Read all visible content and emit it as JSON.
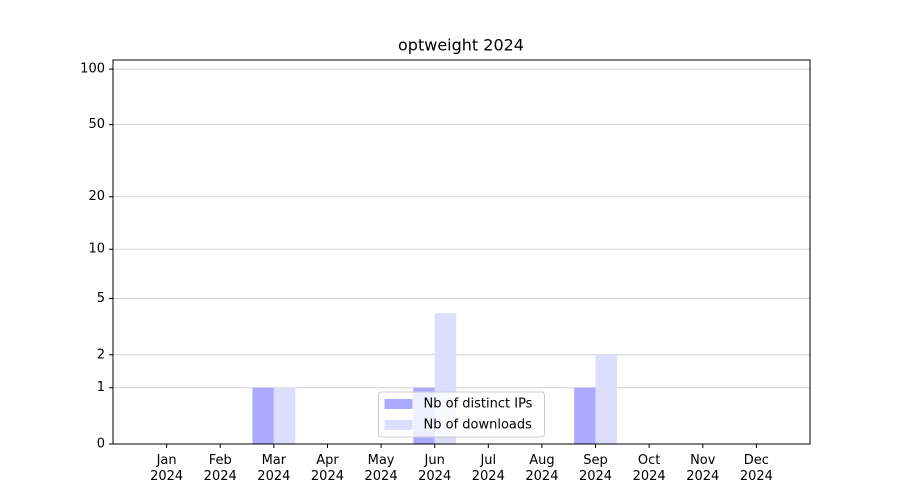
{
  "chart_data": {
    "type": "bar",
    "title": "optweight 2024",
    "categories": [
      "Jan\n2024",
      "Feb\n2024",
      "Mar\n2024",
      "Apr\n2024",
      "May\n2024",
      "Jun\n2024",
      "Jul\n2024",
      "Aug\n2024",
      "Sep\n2024",
      "Oct\n2024",
      "Nov\n2024",
      "Dec\n2024"
    ],
    "series": [
      {
        "name": "Nb of distinct IPs",
        "color": "#aaaaff",
        "values": [
          0,
          0,
          1,
          0,
          0,
          1,
          0,
          0,
          1,
          0,
          0,
          0
        ]
      },
      {
        "name": "Nb of downloads",
        "color": "#ddddff",
        "values": [
          0,
          0,
          1,
          0,
          0,
          4,
          0,
          0,
          2,
          0,
          0,
          0
        ]
      }
    ],
    "yscale": "log1p",
    "ylim": [
      0,
      112
    ],
    "yticks": [
      0,
      1,
      2,
      5,
      10,
      20,
      50,
      100
    ],
    "grid": true,
    "legend": "lower center"
  }
}
